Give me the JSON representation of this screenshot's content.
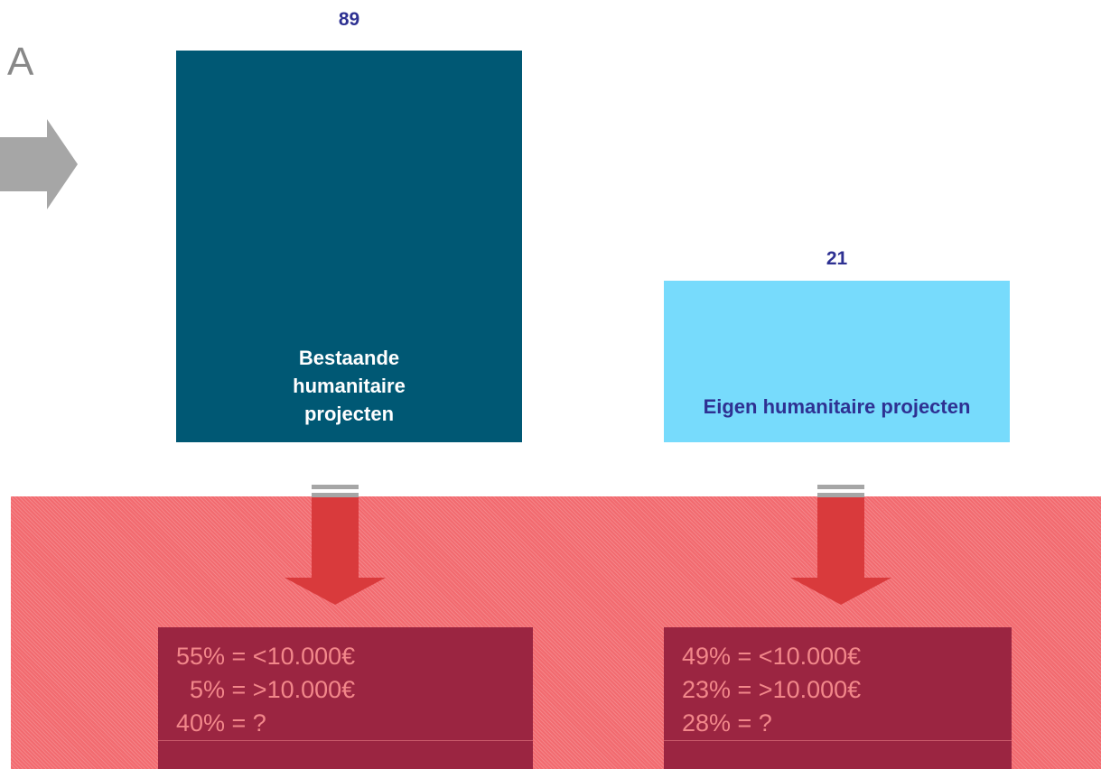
{
  "marker": "A",
  "blocks": [
    {
      "value": "89",
      "label": "Bestaande humanitaire projecten",
      "breakdown": [
        "55% = <10.000€",
        "  5% = >10.000€",
        "40% = ?"
      ]
    },
    {
      "value": "21",
      "label": "Eigen humanitaire projecten",
      "breakdown": [
        "49% = <10.000€",
        "23% = >10.000€",
        "28% = ?"
      ]
    }
  ]
}
